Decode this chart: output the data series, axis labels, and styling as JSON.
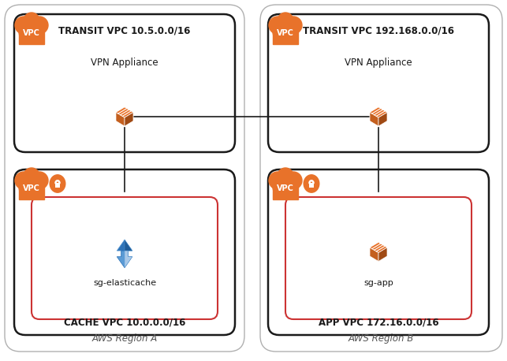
{
  "bg_color": "#ffffff",
  "region_a_label": "AWS Region A",
  "region_b_label": "AWS Region B",
  "transit_vpc_a_label": "TRANSIT VPC 10.5.0.0/16",
  "transit_vpc_b_label": "TRANSIT VPC 192.168.0.0/16",
  "cache_vpc_label": "CACHE VPC 10.0.0.0/16",
  "app_vpc_label": "APP VPC 172.16.0.0/16",
  "vpn_appliance_label": "VPN Appliance",
  "sg_elasticache_label": "sg-elasticache",
  "sg_app_label": "sg-app",
  "vpc_label": "VPC",
  "orange": "#E8722A",
  "dark_gray": "#1a1a1a",
  "red_border": "#cc3333",
  "region_border": "#b0b0b0",
  "line_color": "#1a1a1a",
  "blue_dark": "#1F5C99",
  "blue_mid": "#2E73B8",
  "blue_light": "#5B9BD5",
  "blue_pale": "#A8C8E8"
}
